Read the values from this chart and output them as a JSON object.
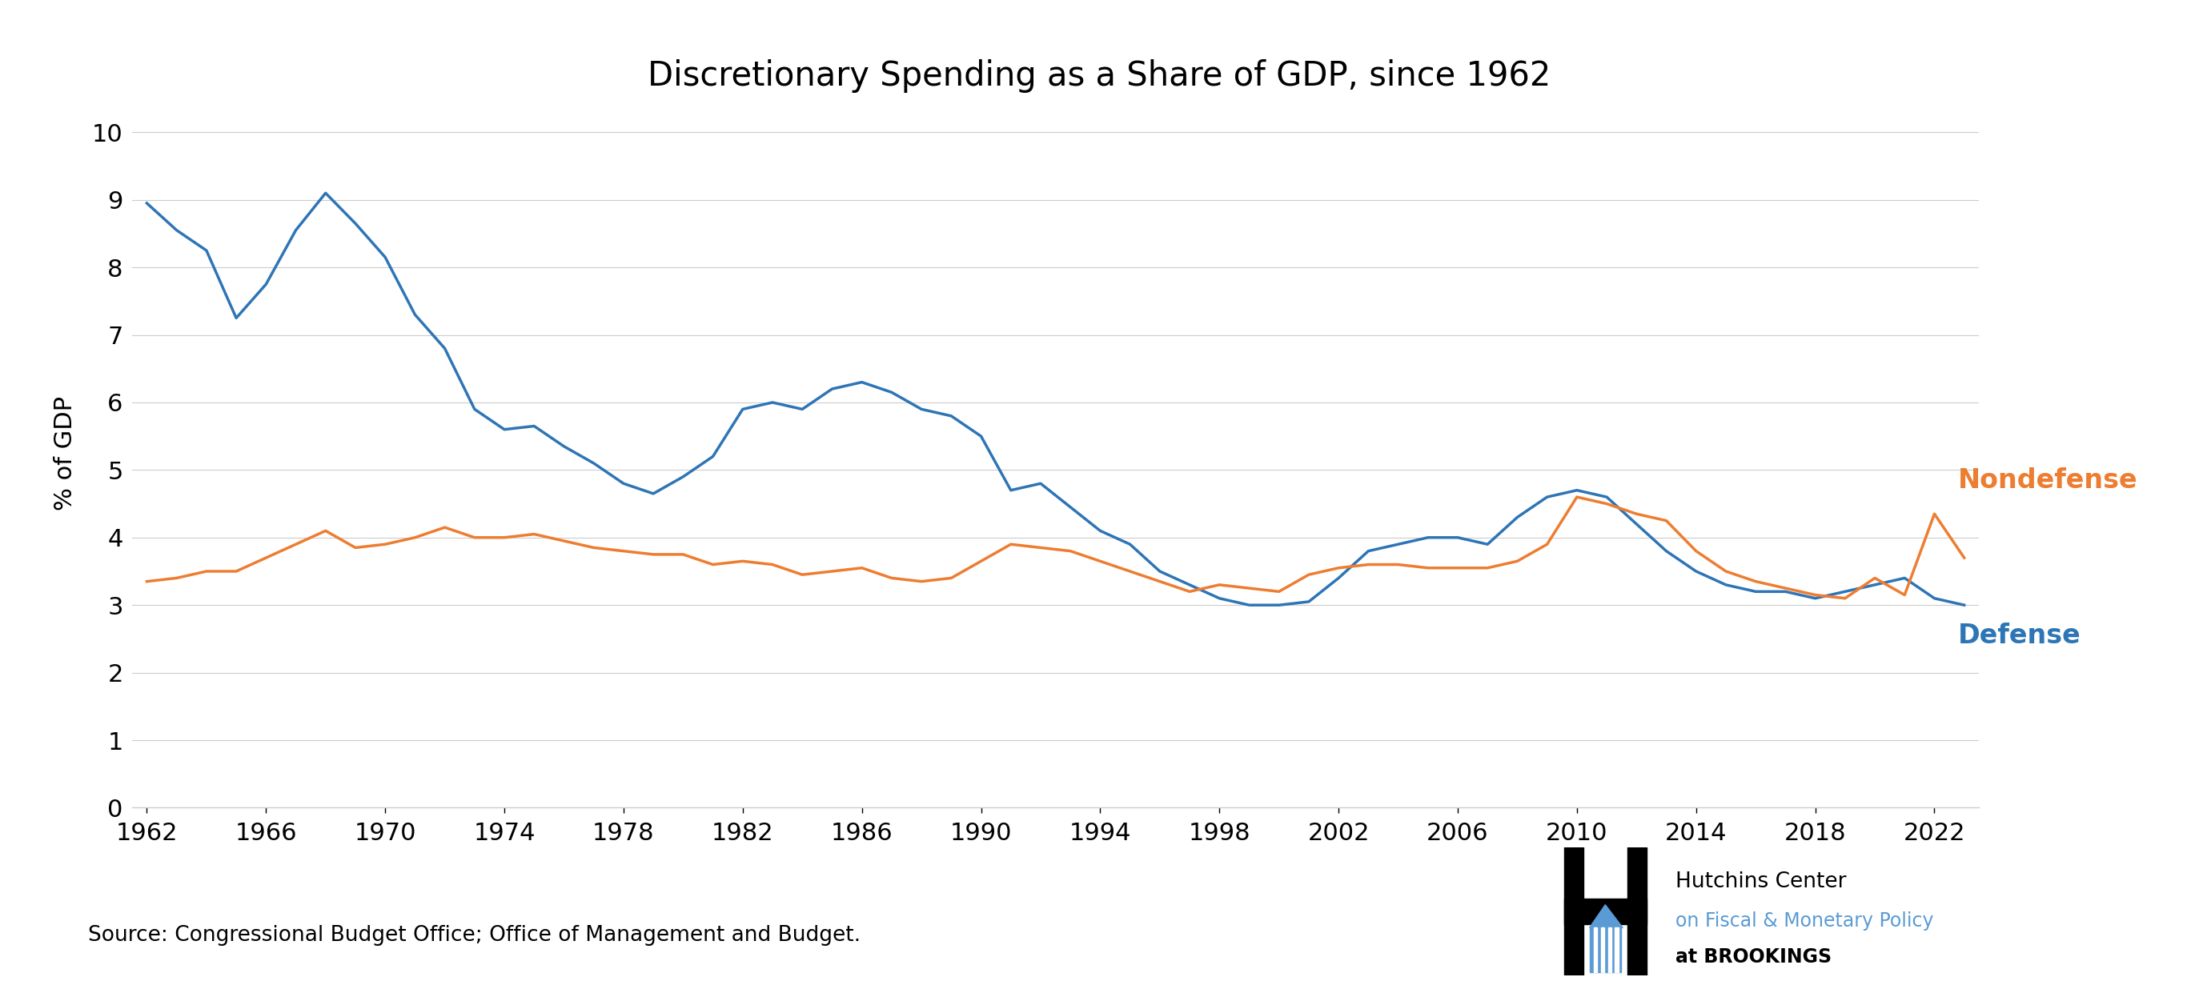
{
  "title": "Discretionary Spending as a Share of GDP, since 1962",
  "ylabel": "% of GDP",
  "source_text": "Source: Congressional Budget Office; Office of Management and Budget.",
  "defense_years": [
    1962,
    1963,
    1964,
    1965,
    1966,
    1967,
    1968,
    1969,
    1970,
    1971,
    1972,
    1973,
    1974,
    1975,
    1976,
    1977,
    1978,
    1979,
    1980,
    1981,
    1982,
    1983,
    1984,
    1985,
    1986,
    1987,
    1988,
    1989,
    1990,
    1991,
    1992,
    1993,
    1994,
    1995,
    1996,
    1997,
    1998,
    1999,
    2000,
    2001,
    2002,
    2003,
    2004,
    2005,
    2006,
    2007,
    2008,
    2009,
    2010,
    2011,
    2012,
    2013,
    2014,
    2015,
    2016,
    2017,
    2018,
    2019,
    2020,
    2021,
    2022,
    2023
  ],
  "defense_values": [
    8.95,
    8.55,
    8.25,
    7.25,
    7.75,
    8.55,
    9.1,
    8.65,
    8.15,
    7.3,
    6.8,
    5.9,
    5.6,
    5.65,
    5.35,
    5.1,
    4.8,
    4.65,
    4.9,
    5.2,
    5.9,
    6.0,
    5.9,
    6.2,
    6.3,
    6.15,
    5.9,
    5.8,
    5.5,
    4.7,
    4.8,
    4.45,
    4.1,
    3.9,
    3.5,
    3.3,
    3.1,
    3.0,
    3.0,
    3.05,
    3.4,
    3.8,
    3.9,
    4.0,
    4.0,
    3.9,
    4.3,
    4.6,
    4.7,
    4.6,
    4.2,
    3.8,
    3.5,
    3.3,
    3.2,
    3.2,
    3.1,
    3.2,
    3.3,
    3.4,
    3.1,
    3.0
  ],
  "nondefense_years": [
    1962,
    1963,
    1964,
    1965,
    1966,
    1967,
    1968,
    1969,
    1970,
    1971,
    1972,
    1973,
    1974,
    1975,
    1976,
    1977,
    1978,
    1979,
    1980,
    1981,
    1982,
    1983,
    1984,
    1985,
    1986,
    1987,
    1988,
    1989,
    1990,
    1991,
    1992,
    1993,
    1994,
    1995,
    1996,
    1997,
    1998,
    1999,
    2000,
    2001,
    2002,
    2003,
    2004,
    2005,
    2006,
    2007,
    2008,
    2009,
    2010,
    2011,
    2012,
    2013,
    2014,
    2015,
    2016,
    2017,
    2018,
    2019,
    2020,
    2021,
    2022,
    2023
  ],
  "nondefense_values": [
    3.35,
    3.4,
    3.5,
    3.5,
    3.7,
    3.9,
    4.1,
    3.85,
    3.9,
    4.0,
    4.15,
    4.0,
    4.0,
    4.05,
    3.95,
    3.85,
    3.8,
    3.75,
    3.75,
    3.6,
    3.65,
    3.6,
    3.45,
    3.5,
    3.55,
    3.4,
    3.35,
    3.4,
    3.65,
    3.9,
    3.85,
    3.8,
    3.65,
    3.5,
    3.35,
    3.2,
    3.3,
    3.25,
    3.2,
    3.45,
    3.55,
    3.6,
    3.6,
    3.55,
    3.55,
    3.55,
    3.65,
    3.9,
    4.6,
    4.5,
    4.35,
    4.25,
    3.8,
    3.5,
    3.35,
    3.25,
    3.15,
    3.1,
    3.4,
    3.15,
    4.35,
    3.7
  ],
  "defense_color": "#2E75B6",
  "nondefense_color": "#ED7D31",
  "hutchins_blue": "#5B9BD5",
  "ylim": [
    0,
    10.5
  ],
  "yticks": [
    0,
    1,
    2,
    3,
    4,
    5,
    6,
    7,
    8,
    9,
    10
  ],
  "xticks": [
    1962,
    1966,
    1970,
    1974,
    1978,
    1982,
    1986,
    1990,
    1994,
    1998,
    2002,
    2006,
    2010,
    2014,
    2018,
    2022
  ],
  "xlim": [
    1961.5,
    2023.5
  ],
  "line_width": 2.5,
  "label_defense": "Defense",
  "label_nondefense": "Nondefense",
  "grid_color": "#CCCCCC",
  "background_color": "#FFFFFF",
  "title_fontsize": 30,
  "tick_fontsize": 22,
  "ylabel_fontsize": 22,
  "label_fontsize": 24,
  "source_fontsize": 19,
  "hutchins_fontsize_main": 19,
  "hutchins_fontsize_sub": 17
}
